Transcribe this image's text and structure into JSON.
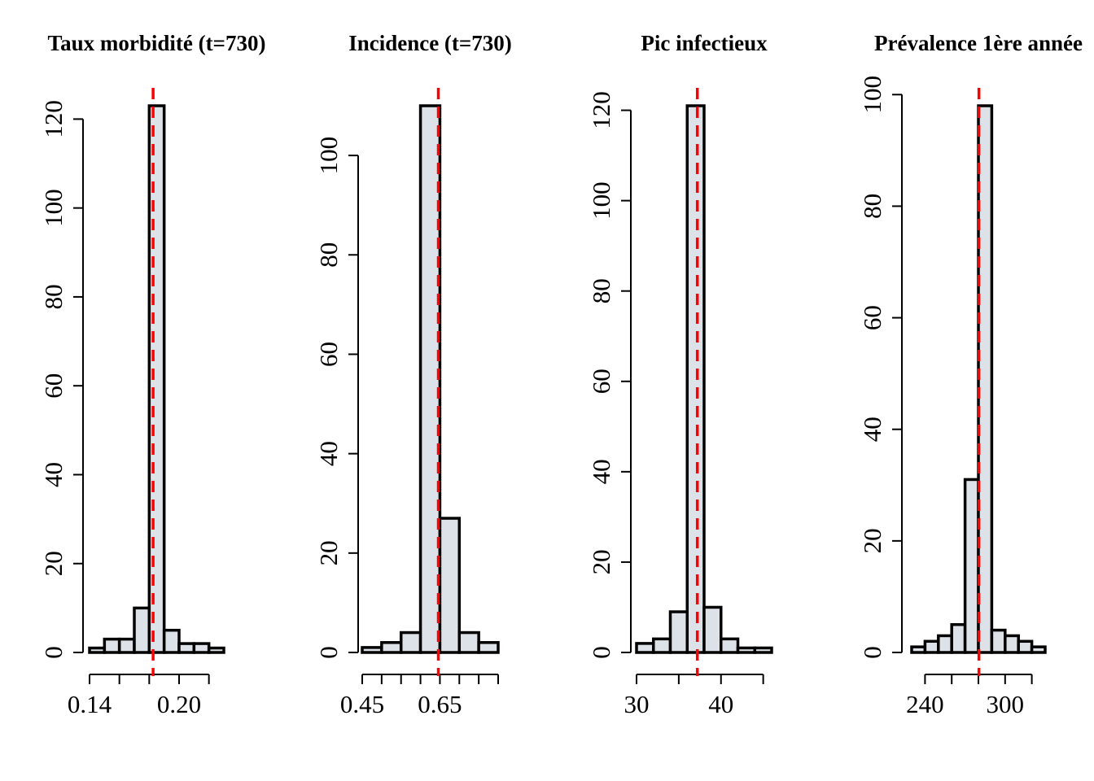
{
  "chart_data": [
    {
      "type": "histogram",
      "title": "Taux morbidité (t=730)",
      "bins": [
        0.14,
        0.15,
        0.16,
        0.17,
        0.18,
        0.19,
        0.2,
        0.21,
        0.22,
        0.23
      ],
      "values": [
        1,
        3,
        3,
        10,
        123,
        5,
        2,
        2,
        1
      ],
      "color": "#dde1e8",
      "vline": 0.1826,
      "vline_color": "#ff0000",
      "xlim": [
        0.14,
        0.23
      ],
      "ylim": [
        0,
        123
      ],
      "xticks": [
        0.14,
        {
          "value": 0.16,
          "label": null
        },
        {
          "value": 0.18,
          "label": null
        },
        {
          "value": 0.2,
          "label": "0.20"
        },
        {
          "value": 0.22,
          "label": null
        }
      ],
      "yticks": [
        0,
        20,
        40,
        60,
        80,
        100,
        120
      ]
    },
    {
      "type": "histogram",
      "title": "Incidence (t=730)",
      "bins": [
        0.45,
        0.5,
        0.55,
        0.6,
        0.65,
        0.7,
        0.75,
        0.8
      ],
      "values": [
        1,
        2,
        4,
        110,
        27,
        4,
        2
      ],
      "color": "#dde1e8",
      "vline": 0.646,
      "vline_color": "#ff0000",
      "xlim": [
        0.45,
        0.8
      ],
      "ylim": [
        0,
        110
      ],
      "xticks": [
        0.45,
        {
          "value": 0.5,
          "label": null
        },
        {
          "value": 0.55,
          "label": null
        },
        {
          "value": 0.6,
          "label": null
        },
        0.65,
        {
          "value": 0.7,
          "label": null
        },
        {
          "value": 0.75,
          "label": null
        },
        {
          "value": 0.8,
          "label": null
        }
      ],
      "yticks": [
        0,
        20,
        40,
        60,
        80,
        100
      ]
    },
    {
      "type": "histogram",
      "title": "Pic infectieux",
      "bins": [
        30,
        32,
        34,
        36,
        38,
        40,
        42,
        44,
        46
      ],
      "values": [
        2,
        3,
        9,
        121,
        10,
        3,
        1,
        1
      ],
      "color": "#dde1e8",
      "vline": 37.2,
      "vline_color": "#ff0000",
      "xlim": [
        30,
        46
      ],
      "ylim": [
        0,
        121
      ],
      "xticks": [
        30,
        {
          "value": 35,
          "label": null
        },
        40,
        {
          "value": 45,
          "label": null
        }
      ],
      "yticks": [
        0,
        20,
        40,
        60,
        80,
        100,
        120
      ]
    },
    {
      "type": "histogram",
      "title": "Prévalence 1ère année",
      "bins": [
        230,
        240,
        250,
        260,
        270,
        280,
        290,
        300,
        310,
        320,
        330
      ],
      "values": [
        1,
        2,
        3,
        5,
        31,
        98,
        4,
        3,
        2,
        1
      ],
      "color": "#dde1e8",
      "vline": 280.4,
      "vline_color": "#ff0000",
      "xlim": [
        230,
        330
      ],
      "ylim": [
        0,
        98
      ],
      "xticks": [
        240,
        {
          "value": 260,
          "label": null
        },
        {
          "value": 280,
          "label": null
        },
        300,
        {
          "value": 320,
          "label": null
        }
      ],
      "yticks": [
        0,
        20,
        40,
        60,
        80,
        100
      ]
    }
  ]
}
